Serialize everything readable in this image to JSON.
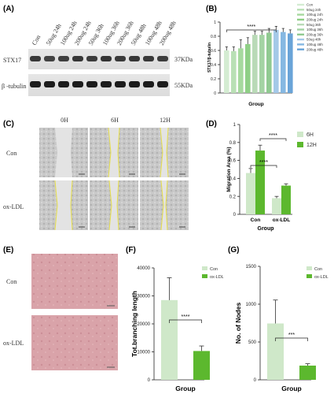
{
  "panels": {
    "A": {
      "label": "(A)",
      "lanes": [
        "Con",
        "50ug 24h",
        "100ug 24h",
        "200ug 24h",
        "50ug 36h",
        "100ug 36h",
        "200ug 36h",
        "50ug 48h",
        "100ug 48h",
        "200ug 48h"
      ],
      "rows": [
        {
          "name": "STX17",
          "size": "37KDa"
        },
        {
          "name": "β -tubulin",
          "size": "55KDa"
        }
      ]
    },
    "C": {
      "label": "(C)",
      "times": [
        "0H",
        "6H",
        "12H"
      ],
      "groups": [
        "Con",
        "ox-LDL"
      ]
    },
    "E": {
      "label": "(E)",
      "groups": [
        "Con",
        "ox-LDL"
      ]
    }
  },
  "chart_data": [
    {
      "id": "B",
      "panel_label": "(B)",
      "type": "bar",
      "ylabel": "STX17/β-tubulin",
      "xlabel": "Group",
      "ylim": [
        0.0,
        1.0
      ],
      "yticks": [
        0.0,
        0.2,
        0.4,
        0.6,
        0.8,
        1.0
      ],
      "categories": [
        "Con",
        "50ug 24h",
        "100ug 24h",
        "200ug 24h",
        "50ug 36h",
        "100ug 36h",
        "200ug 36h",
        "50ug 48h",
        "100ug 48h",
        "200ug 48h"
      ],
      "values": [
        0.6,
        0.59,
        0.63,
        0.69,
        0.82,
        0.82,
        0.85,
        0.89,
        0.86,
        0.84
      ],
      "errors": [
        0.05,
        0.06,
        0.12,
        0.09,
        0.05,
        0.05,
        0.06,
        0.05,
        0.05,
        0.05
      ],
      "colors": [
        "#d4ecd2",
        "#b9e0b5",
        "#a6d99e",
        "#8fcf86",
        "#b9dab7",
        "#a3d3a3",
        "#90ca91",
        "#a4c9e8",
        "#86b8e2",
        "#6aa4d8"
      ],
      "significance": {
        "from": 0,
        "to": 7,
        "label": "****"
      },
      "legend": {
        "position": "right"
      }
    },
    {
      "id": "D",
      "panel_label": "(D)",
      "type": "bar",
      "ylabel": "Migration Area (%)",
      "xlabel": "Group",
      "ylim": [
        0.0,
        1.0
      ],
      "yticks": [
        0.0,
        0.2,
        0.4,
        0.6,
        0.8,
        1.0
      ],
      "categories": [
        "Con",
        "ox-LDL"
      ],
      "series": [
        {
          "name": "6H",
          "values": [
            0.46,
            0.18
          ],
          "errors": [
            0.05,
            0.02
          ],
          "color": "#cfe8c9"
        },
        {
          "name": "12H",
          "values": [
            0.71,
            0.32
          ],
          "errors": [
            0.06,
            0.02
          ],
          "color": "#5cb82e"
        }
      ],
      "significance": [
        {
          "label": "****",
          "between": "Con-6H / ox-LDL-6H"
        },
        {
          "label": "****",
          "between": "Con-12H / ox-LDL-12H"
        }
      ],
      "legend": {
        "position": "right"
      }
    },
    {
      "id": "F",
      "panel_label": "(F)",
      "type": "bar",
      "ylabel": "Tot.branching length",
      "xlabel": "Group",
      "ylim": [
        0,
        40000
      ],
      "yticks": [
        0,
        10000,
        20000,
        30000,
        40000
      ],
      "categories": [
        "Con",
        "ox-LDL"
      ],
      "values": [
        28500,
        10300
      ],
      "errors": [
        8000,
        1800
      ],
      "colors": [
        "#cfe8c9",
        "#5cb82e"
      ],
      "significance": {
        "label": "****"
      },
      "legend": {
        "position": "top-right",
        "entries": [
          "Con",
          "ox-LDL"
        ]
      }
    },
    {
      "id": "G",
      "panel_label": "(G)",
      "type": "bar",
      "ylabel": "No. of Nodes",
      "xlabel": "Group",
      "ylim": [
        0,
        1500
      ],
      "yticks": [
        0,
        500,
        1000,
        1500
      ],
      "categories": [
        "Con",
        "ox-LDL"
      ],
      "values": [
        745,
        188
      ],
      "errors": [
        310,
        25
      ],
      "colors": [
        "#cfe8c9",
        "#5cb82e"
      ],
      "significance": {
        "label": "***"
      },
      "legend": {
        "position": "top-right",
        "entries": [
          "Con",
          "ox-LDL"
        ]
      }
    }
  ]
}
